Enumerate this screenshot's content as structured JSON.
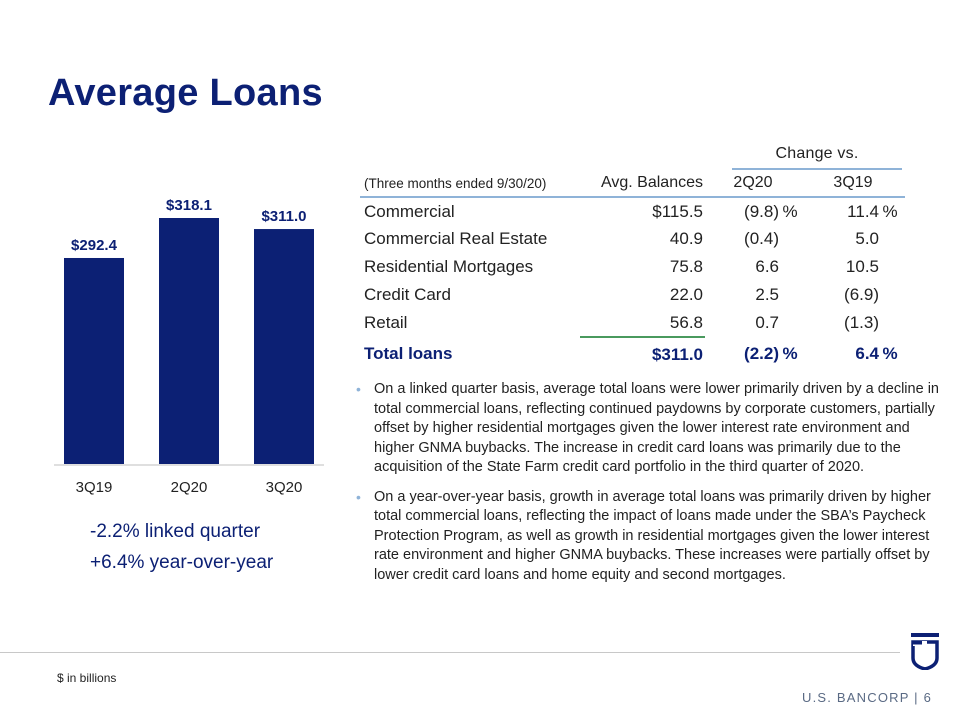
{
  "title": "Average Loans",
  "chart_data": {
    "type": "bar",
    "categories": [
      "3Q19",
      "2Q20",
      "3Q20"
    ],
    "values": [
      292.4,
      318.1,
      311.0
    ],
    "value_labels": [
      "$292.4",
      "$318.1",
      "$311.0"
    ],
    "bar_color": "#0c2074",
    "grid": false
  },
  "summary": {
    "linked": "-2.2% linked quarter",
    "yoy": "+6.4% year-over-year"
  },
  "table": {
    "change_header": "Change vs.",
    "columns": {
      "desc": "(Three months ended 9/30/20)",
      "balance": "Avg. Balances",
      "q2": "2Q20",
      "q3": "3Q19"
    },
    "rows": [
      {
        "label": "Commercial",
        "balance": "$115.5",
        "q2": "(9.8)",
        "q2_pct": "%",
        "q3": "11.4",
        "q3_pct": "%"
      },
      {
        "label": "Commercial Real Estate",
        "balance": "40.9",
        "q2": "(0.4)",
        "q2_pct": "",
        "q3": "5.0",
        "q3_pct": ""
      },
      {
        "label": "Residential Mortgages",
        "balance": "75.8",
        "q2": "6.6",
        "q2_pct": "",
        "q3": "10.5",
        "q3_pct": ""
      },
      {
        "label": "Credit Card",
        "balance": "22.0",
        "q2": "2.5",
        "q2_pct": "",
        "q3": "(6.9)",
        "q3_pct": ""
      },
      {
        "label": "Retail",
        "balance": "56.8",
        "q2": "0.7",
        "q2_pct": "",
        "q3": "(1.3)",
        "q3_pct": ""
      }
    ],
    "total": {
      "label": "Total loans",
      "balance": "$311.0",
      "q2": "(2.2)",
      "q2_pct": "%",
      "q3": "6.4",
      "q3_pct": "%"
    }
  },
  "bullets": [
    "On a linked quarter basis, average total loans were lower primarily driven by a decline in total commercial loans, reflecting continued paydowns by corporate customers, partially offset by higher residential mortgages given the lower interest rate environment and higher GNMA buybacks. The increase in credit card loans was primarily due to the acquisition of the State Farm credit card portfolio in the third quarter of 2020.",
    "On a year-over-year basis, growth in average total loans was primarily driven by higher total commercial loans, reflecting the impact of loans made under the SBA’s Paycheck Protection Program, as well as growth in residential mortgages given the lower interest rate environment and higher GNMA buybacks. These increases were partially offset by lower credit card loans and home equity and second mortgages."
  ],
  "footer": {
    "units": "$ in billions",
    "brand": "U.S. BANCORP",
    "separator": "|",
    "page": "6"
  },
  "logo_icon": "us-bancorp-shield-icon"
}
